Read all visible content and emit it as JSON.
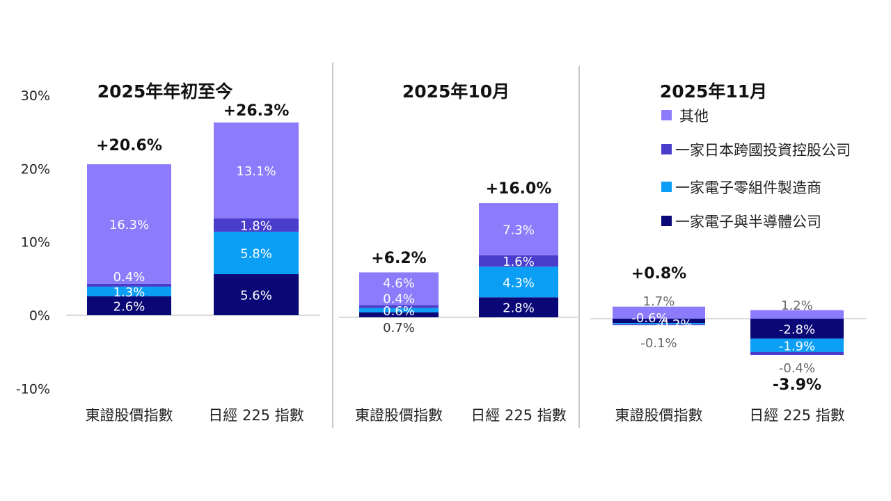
{
  "legend": [
    {
      "name": "其他",
      "color": "#8c7cfc"
    },
    {
      "name": "一家日本跨國投資控股公司",
      "color": "#4a3dcc"
    },
    {
      "name": "一家電子零組件製造商",
      "color": "#0b9ef5"
    },
    {
      "name": "一家電子與半導體公司",
      "color": "#0a0877"
    }
  ],
  "chart_data": [
    {
      "type": "bar",
      "stacked": true,
      "title": "2025年年初至今",
      "categories": [
        "東證股價指數",
        "日經 225 指數"
      ],
      "yticks": [
        "30%",
        "20%",
        "10%",
        "0%",
        "-10%"
      ],
      "ylim": [
        -10,
        30
      ],
      "series": [
        {
          "name": "一家電子與半導體公司",
          "values": [
            2.6,
            5.6
          ],
          "labels": [
            "2.6%",
            "5.6%"
          ]
        },
        {
          "name": "一家電子零組件製造商",
          "values": [
            1.3,
            5.8
          ],
          "labels": [
            "1.3%",
            "5.8%"
          ]
        },
        {
          "name": "一家日本跨國投資控股公司",
          "values": [
            0.4,
            1.8
          ],
          "labels": [
            "0.4%",
            "1.8%"
          ]
        },
        {
          "name": "其他",
          "values": [
            16.3,
            13.1
          ],
          "labels": [
            "16.3%",
            "13.1%"
          ]
        }
      ],
      "totals": [
        "+20.6%",
        "+26.3%"
      ]
    },
    {
      "type": "bar",
      "stacked": true,
      "title": "2025年10月",
      "categories": [
        "東證股價指數",
        "日經 225 指數"
      ],
      "series": [
        {
          "name": "一家電子與半導體公司",
          "values": [
            0.7,
            2.8
          ],
          "labels": [
            "0.7%",
            "2.8%"
          ]
        },
        {
          "name": "一家電子零組件製造商",
          "values": [
            0.6,
            4.3
          ],
          "labels": [
            "0.6%",
            "4.3%"
          ]
        },
        {
          "name": "一家日本跨國投資控股公司",
          "values": [
            0.4,
            1.6
          ],
          "labels": [
            "0.4%",
            "1.6%"
          ]
        },
        {
          "name": "其他",
          "values": [
            4.6,
            7.3
          ],
          "labels": [
            "4.6%",
            "7.3%"
          ]
        }
      ],
      "totals": [
        "+6.2%",
        "+16.0%"
      ]
    },
    {
      "type": "bar",
      "stacked": true,
      "title": "2025年11月",
      "categories": [
        "東證股價指數",
        "日經 225 指數"
      ],
      "series": [
        {
          "name": "一家電子與半導體公司",
          "values": [
            -0.6,
            -2.8
          ],
          "labels": [
            "-0.6%",
            "-2.8%"
          ]
        },
        {
          "name": "一家電子零組件製造商",
          "values": [
            -0.2,
            -1.9
          ],
          "labels": [
            "-0.2%",
            "-1.9%"
          ]
        },
        {
          "name": "一家日本跨國投資控股公司",
          "values": [
            -0.1,
            -0.4
          ],
          "labels": [
            "-0.1%",
            "-0.4%"
          ]
        },
        {
          "name": "其他",
          "values": [
            1.7,
            1.2
          ],
          "labels": [
            "1.7%",
            "1.2%"
          ]
        }
      ],
      "totals": [
        "+0.8%",
        "-3.9%"
      ]
    }
  ]
}
